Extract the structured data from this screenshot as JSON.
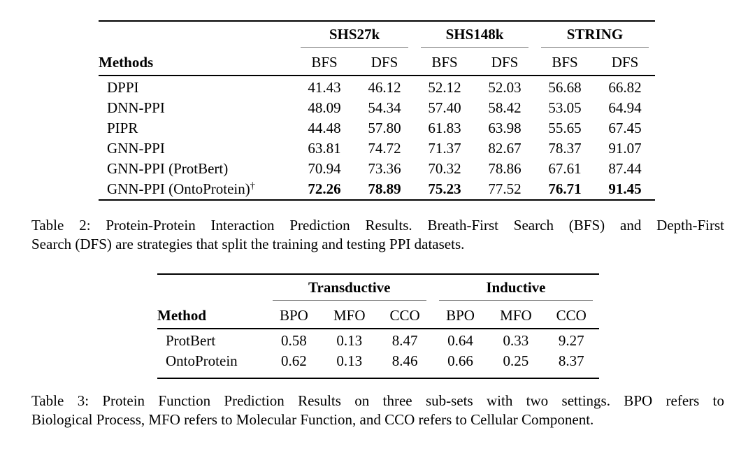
{
  "colors": {
    "text": "#000000",
    "rule_heavy": "#000000",
    "rule_light": "#707070",
    "background": "#ffffff"
  },
  "table2": {
    "groups": [
      "SHS27k",
      "SHS148k",
      "STRING"
    ],
    "method_header": "Methods",
    "subheaders": [
      "BFS",
      "DFS",
      "BFS",
      "DFS",
      "BFS",
      "DFS"
    ],
    "rows": [
      {
        "method": "DPPI",
        "values": [
          "41.43",
          "46.12",
          "52.12",
          "52.03",
          "56.68",
          "66.82"
        ]
      },
      {
        "method": "DNN-PPI",
        "values": [
          "48.09",
          "54.34",
          "57.40",
          "58.42",
          "53.05",
          "64.94"
        ]
      },
      {
        "method": "PIPR",
        "values": [
          "44.48",
          "57.80",
          "61.83",
          "63.98",
          "55.65",
          "67.45"
        ]
      },
      {
        "method": "GNN-PPI",
        "values": [
          "63.81",
          "74.72",
          "71.37",
          "82.67",
          "78.37",
          "91.07"
        ]
      },
      {
        "method": "GNN-PPI (ProtBert)",
        "values": [
          "70.94",
          "73.36",
          "70.32",
          "78.86",
          "67.61",
          "87.44"
        ]
      },
      {
        "method": "GNN-PPI (OntoProtein)",
        "method_sup": "†",
        "values": [
          "72.26",
          "78.89",
          "75.23",
          "77.52",
          "76.71",
          "91.45"
        ]
      }
    ],
    "caption": {
      "line1": "Table 2:  Protein-Protein Interaction Prediction Results. Breath-First Search (BFS) and Depth-First",
      "line2": "Search (DFS) are strategies that split the training and testing PPI datasets."
    }
  },
  "table3": {
    "groups": [
      "Transductive",
      "Inductive"
    ],
    "method_header": "Method",
    "subheaders": [
      "BPO",
      "MFO",
      "CCO",
      "BPO",
      "MFO",
      "CCO"
    ],
    "rows": [
      {
        "method": "ProtBert",
        "values": [
          "0.58",
          "0.13",
          "8.47",
          "0.64",
          "0.33",
          "9.27"
        ]
      },
      {
        "method": "OntoProtein",
        "values": [
          "0.62",
          "0.13",
          "8.46",
          "0.66",
          "0.25",
          "8.37"
        ]
      }
    ],
    "caption": {
      "line1": "Table 3:  Protein Function Prediction Results on three sub-sets with two settings.  BPO refers to",
      "line2": "Biological Process, MFO refers to Molecular Function, and CCO refers to Cellular Component."
    }
  }
}
